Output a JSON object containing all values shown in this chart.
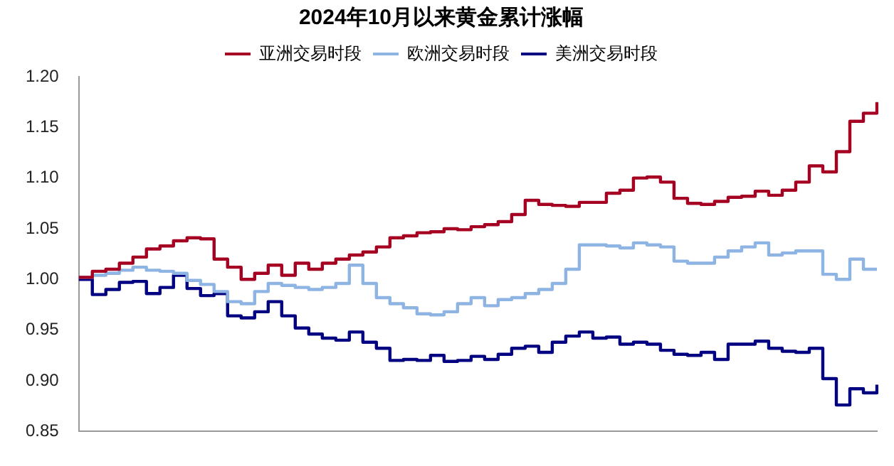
{
  "chart_data": {
    "type": "step",
    "title": "2024年10月以来黄金累计涨幅",
    "categories": [
      null,
      null,
      null,
      null,
      null,
      null,
      null,
      null,
      null,
      null,
      null,
      null,
      null,
      null,
      null,
      null,
      null,
      null,
      null,
      null,
      null,
      null,
      null,
      null,
      null,
      null,
      null,
      null,
      null,
      null,
      null,
      null,
      null,
      null,
      null,
      null,
      null,
      null,
      null,
      null,
      null,
      null,
      null,
      null,
      null,
      null,
      null,
      null,
      null,
      null,
      null,
      null,
      null,
      null,
      null,
      null,
      null,
      null,
      null,
      null
    ],
    "series": [
      {
        "name": "亚洲交易时段",
        "color": "#a50021",
        "values": [
          1.002,
          1.008,
          1.01,
          1.016,
          1.022,
          1.03,
          1.033,
          1.038,
          1.041,
          1.04,
          1.02,
          1.012,
          1.0,
          1.006,
          1.014,
          1.004,
          1.016,
          1.01,
          1.016,
          1.02,
          1.024,
          1.027,
          1.032,
          1.041,
          1.043,
          1.046,
          1.047,
          1.05,
          1.049,
          1.052,
          1.054,
          1.057,
          1.064,
          1.078,
          1.074,
          1.073,
          1.072,
          1.076,
          1.076,
          1.085,
          1.088,
          1.1,
          1.101,
          1.096,
          1.08,
          1.075,
          1.074,
          1.077,
          1.081,
          1.082,
          1.087,
          1.083,
          1.088,
          1.096,
          1.112,
          1.106,
          1.126,
          1.156,
          1.164,
          1.175
        ]
      },
      {
        "name": "欧洲交易时段",
        "color": "#8eb4e3",
        "values": [
          1.002,
          1.004,
          1.006,
          1.009,
          1.012,
          1.009,
          1.008,
          1.006,
          0.999,
          0.995,
          0.988,
          0.978,
          0.976,
          0.988,
          0.996,
          0.994,
          0.992,
          0.99,
          0.992,
          0.996,
          1.014,
          0.996,
          0.982,
          0.976,
          0.972,
          0.966,
          0.965,
          0.968,
          0.976,
          0.982,
          0.974,
          0.98,
          0.982,
          0.986,
          0.99,
          0.996,
          1.01,
          1.034,
          1.034,
          1.033,
          1.031,
          1.036,
          1.034,
          1.032,
          1.018,
          1.016,
          1.016,
          1.022,
          1.028,
          1.032,
          1.036,
          1.024,
          1.026,
          1.028,
          1.028,
          1.005,
          1.0,
          1.02,
          1.01,
          1.01
        ]
      },
      {
        "name": "美洲交易时段",
        "color": "#000080",
        "values": [
          1.0,
          0.985,
          0.99,
          0.997,
          0.998,
          0.986,
          0.992,
          1.004,
          0.991,
          0.984,
          0.986,
          0.964,
          0.962,
          0.968,
          0.978,
          0.964,
          0.952,
          0.946,
          0.942,
          0.94,
          0.948,
          0.938,
          0.932,
          0.92,
          0.921,
          0.92,
          0.925,
          0.919,
          0.92,
          0.924,
          0.921,
          0.926,
          0.932,
          0.934,
          0.928,
          0.938,
          0.944,
          0.948,
          0.942,
          0.943,
          0.936,
          0.938,
          0.936,
          0.93,
          0.926,
          0.925,
          0.928,
          0.921,
          0.936,
          0.936,
          0.939,
          0.932,
          0.929,
          0.928,
          0.932,
          0.902,
          0.876,
          0.892,
          0.888,
          0.896
        ]
      }
    ],
    "ylim": [
      0.85,
      1.2
    ],
    "yticks": [
      0.85,
      {
        "value": 0.9,
        "label": "0.90"
      },
      0.95,
      {
        "value": 1.0,
        "label": "1.00"
      },
      1.05,
      {
        "value": 1.1,
        "label": "1.10"
      },
      1.15,
      {
        "value": 1.2,
        "label": "1.20"
      }
    ],
    "legend": "top",
    "grid": false,
    "marker": "none",
    "line_style": "solid"
  }
}
